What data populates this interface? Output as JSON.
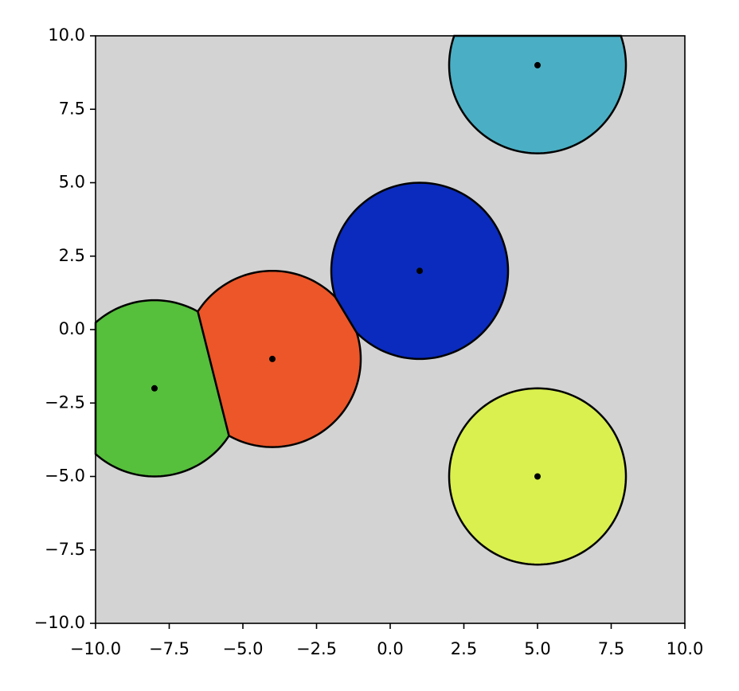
{
  "chart_data": {
    "type": "voronoi-circles",
    "x": [
      -8,
      -4,
      1,
      5,
      5
    ],
    "y": [
      -2,
      -1,
      2,
      9,
      -5
    ],
    "colors": [
      "#56bf3c",
      "#ec5628",
      "#0a2bbd",
      "#4aafc4",
      "#daf04e"
    ],
    "radius": 3,
    "background": "#d3d3d3",
    "point_color": "#000000",
    "xlim": [
      -10,
      10
    ],
    "ylim": [
      -10,
      10
    ],
    "xticks": [
      {
        "value": -10,
        "label": "−10.0"
      },
      {
        "value": -7.5,
        "label": "−7.5"
      },
      {
        "value": -5,
        "label": "−5.0"
      },
      {
        "value": -2.5,
        "label": "−2.5"
      },
      {
        "value": 0,
        "label": "0.0"
      },
      2.5,
      {
        "value": 5,
        "label": "5.0"
      },
      7.5,
      {
        "value": 10,
        "label": "10.0"
      }
    ],
    "yticks": [
      {
        "value": -10,
        "label": "−10.0"
      },
      {
        "value": -7.5,
        "label": "−7.5"
      },
      {
        "value": -5,
        "label": "−5.0"
      },
      {
        "value": -2.5,
        "label": "−2.5"
      },
      {
        "value": 0,
        "label": "0.0"
      },
      2.5,
      {
        "value": 5,
        "label": "5.0"
      },
      7.5,
      {
        "value": 10,
        "label": "10.0"
      }
    ]
  }
}
